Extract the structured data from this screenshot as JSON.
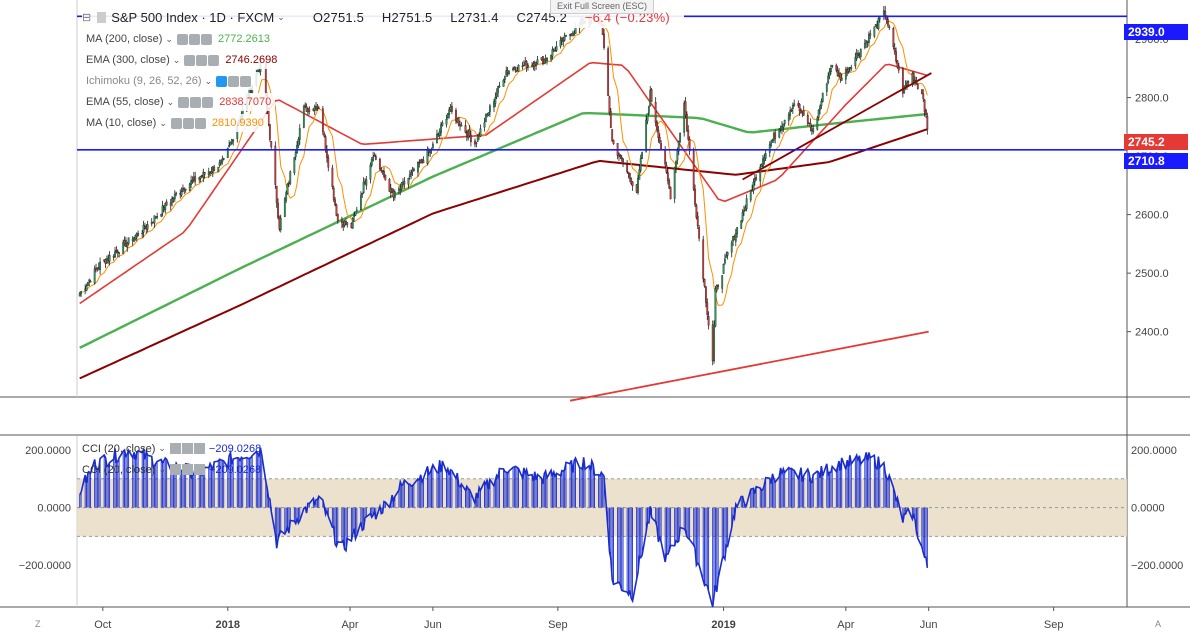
{
  "header": {
    "symbol": "S&P 500 Index · 1D · FXCM",
    "open": "O2751.5",
    "high": "H2751.5",
    "low": "L2731.4",
    "close": "C2745.2",
    "change": "−6.4 (−0.23%)",
    "exit_fullscreen": "Exit Full Screen (ESC)"
  },
  "indicators": [
    {
      "label": "MA (200, close)",
      "value": "2772.2613",
      "color": "#4caf50"
    },
    {
      "label": "EMA (300, close)",
      "value": "2746.2698",
      "color": "#8b0000"
    },
    {
      "label": "Ichimoku (9, 26, 52, 26)",
      "value": "",
      "color": "#2196f3"
    },
    {
      "label": "EMA (55, close)",
      "value": "2838.7070",
      "color": "#e53935"
    },
    {
      "label": "MA (10, close)",
      "value": "2810.9390",
      "color": "#ff8f00"
    }
  ],
  "cci_legend": [
    {
      "label": "CCI (20, close)",
      "value": "−209.0268"
    },
    {
      "label": "CCI (20, close)",
      "value": "−209.0268"
    }
  ],
  "price_tags": {
    "top_line": "2939.0",
    "last": "2745.2",
    "bottom_line": "2710.8"
  },
  "corners": {
    "left": "Z",
    "right": "A"
  },
  "colors": {
    "up": "#26a65b",
    "down": "#e53935",
    "blue_line": "#1a1aff",
    "cci": "#1a2ccc",
    "cci_band": "#e8dcc4"
  },
  "chart_data": {
    "type": "candlestick",
    "title": "S&P 500 Index · 1D · FXCM",
    "price_axis": {
      "ticks": [
        2400,
        2500,
        2600,
        2700,
        2800,
        2900
      ],
      "labels": [
        "2400.0",
        "2500.0",
        "2600.0",
        "2700.0",
        "2800.0",
        "2900.0"
      ],
      "range": [
        2290,
        2960
      ]
    },
    "cci_axis": {
      "ticks": [
        200,
        0,
        -200
      ],
      "labels": [
        "200.0000",
        "0.0000",
        "−200.0000"
      ],
      "range": [
        -345,
        245
      ],
      "band": [
        -100,
        100
      ]
    },
    "time_axis": {
      "labels": [
        "Oct",
        "2018",
        "Apr",
        "Jun",
        "Sep",
        "2019",
        "Apr",
        "Jun",
        "Sep"
      ],
      "label_dates": [
        "2017-10-01",
        "2018-01-01",
        "2018-04-01",
        "2018-06-01",
        "2018-09-01",
        "2019-01-01",
        "2019-04-01",
        "2019-06-01",
        "2019-09-01"
      ],
      "bold_labels": [
        "2018",
        "2019"
      ],
      "range": [
        "2017-09-12",
        "2019-10-25"
      ]
    },
    "horizontal_lines": [
      2939.0,
      2710.8
    ],
    "trendlines": [
      {
        "name": "support",
        "color": "#e53935",
        "points": [
          [
            "2018-09-10",
            2282
          ],
          [
            "2019-06-01",
            2400
          ]
        ]
      },
      {
        "name": "resistance",
        "color": "#8b0000",
        "points": [
          [
            "2019-01-15",
            2660
          ],
          [
            "2019-06-03",
            2842
          ]
        ]
      }
    ],
    "close_anchors": [
      [
        "2017-09-14",
        2465
      ],
      [
        "2017-09-29",
        2515
      ],
      [
        "2017-10-31",
        2575
      ],
      [
        "2017-11-30",
        2648
      ],
      [
        "2017-12-29",
        2690
      ],
      [
        "2018-01-26",
        2865
      ],
      [
        "2018-02-08",
        2580
      ],
      [
        "2018-02-26",
        2780
      ],
      [
        "2018-03-09",
        2786
      ],
      [
        "2018-03-23",
        2590
      ],
      [
        "2018-04-02",
        2580
      ],
      [
        "2018-04-18",
        2705
      ],
      [
        "2018-05-03",
        2630
      ],
      [
        "2018-05-31",
        2712
      ],
      [
        "2018-06-13",
        2780
      ],
      [
        "2018-07-02",
        2722
      ],
      [
        "2018-07-25",
        2846
      ],
      [
        "2018-08-22",
        2865
      ],
      [
        "2018-09-20",
        2932
      ],
      [
        "2018-10-03",
        2930
      ],
      [
        "2018-10-11",
        2725
      ],
      [
        "2018-10-29",
        2640
      ],
      [
        "2018-11-08",
        2807
      ],
      [
        "2018-11-23",
        2633
      ],
      [
        "2018-12-03",
        2790
      ],
      [
        "2018-12-24",
        2351
      ],
      [
        "2018-12-26",
        2467
      ],
      [
        "2019-01-04",
        2532
      ],
      [
        "2019-01-31",
        2704
      ],
      [
        "2019-02-22",
        2792
      ],
      [
        "2019-03-08",
        2743
      ],
      [
        "2019-03-21",
        2854
      ],
      [
        "2019-03-29",
        2834
      ],
      [
        "2019-04-30",
        2946
      ],
      [
        "2019-05-13",
        2812
      ],
      [
        "2019-05-20",
        2840
      ],
      [
        "2019-05-28",
        2802
      ],
      [
        "2019-05-31",
        2745
      ]
    ],
    "cci_anchors": [
      [
        "2017-09-12",
        40
      ],
      [
        "2017-09-25",
        150
      ],
      [
        "2017-10-20",
        200
      ],
      [
        "2017-11-15",
        150
      ],
      [
        "2017-12-10",
        120
      ],
      [
        "2018-01-10",
        180
      ],
      [
        "2018-01-26",
        200
      ],
      [
        "2018-02-06",
        -120
      ],
      [
        "2018-02-26",
        -10
      ],
      [
        "2018-03-10",
        30
      ],
      [
        "2018-03-25",
        -150
      ],
      [
        "2018-04-10",
        -60
      ],
      [
        "2018-04-25",
        0
      ],
      [
        "2018-05-10",
        80
      ],
      [
        "2018-06-10",
        150
      ],
      [
        "2018-07-01",
        30
      ],
      [
        "2018-07-25",
        140
      ],
      [
        "2018-08-20",
        100
      ],
      [
        "2018-09-20",
        160
      ],
      [
        "2018-10-05",
        110
      ],
      [
        "2018-10-11",
        -250
      ],
      [
        "2018-10-26",
        -300
      ],
      [
        "2018-11-08",
        -20
      ],
      [
        "2018-11-20",
        -180
      ],
      [
        "2018-12-03",
        -60
      ],
      [
        "2018-12-24",
        -330
      ],
      [
        "2019-01-10",
        0
      ],
      [
        "2019-02-10",
        120
      ],
      [
        "2019-03-10",
        110
      ],
      [
        "2019-03-25",
        150
      ],
      [
        "2019-04-20",
        170
      ],
      [
        "2019-04-30",
        140
      ],
      [
        "2019-05-13",
        -40
      ],
      [
        "2019-05-20",
        -20
      ],
      [
        "2019-05-31",
        -209
      ]
    ],
    "ma200_anchors": [
      [
        "2017-09-12",
        2370
      ],
      [
        "2018-01-10",
        2508
      ],
      [
        "2018-06-01",
        2665
      ],
      [
        "2018-09-20",
        2774
      ],
      [
        "2018-12-15",
        2765
      ],
      [
        "2019-01-20",
        2740
      ],
      [
        "2019-03-20",
        2755
      ],
      [
        "2019-05-31",
        2772
      ]
    ],
    "ema300_anchors": [
      [
        "2017-09-12",
        2318
      ],
      [
        "2018-01-10",
        2445
      ],
      [
        "2018-06-01",
        2602
      ],
      [
        "2018-10-01",
        2692
      ],
      [
        "2019-01-10",
        2668
      ],
      [
        "2019-03-20",
        2690
      ],
      [
        "2019-05-31",
        2746
      ]
    ],
    "ema55_anchors": [
      [
        "2017-09-12",
        2445
      ],
      [
        "2017-12-01",
        2572
      ],
      [
        "2018-02-06",
        2798
      ],
      [
        "2018-04-10",
        2720
      ],
      [
        "2018-07-10",
        2736
      ],
      [
        "2018-09-25",
        2860
      ],
      [
        "2018-10-20",
        2855
      ],
      [
        "2018-12-30",
        2620
      ],
      [
        "2019-02-10",
        2660
      ],
      [
        "2019-04-01",
        2788
      ],
      [
        "2019-05-01",
        2858
      ],
      [
        "2019-05-31",
        2838
      ]
    ],
    "ma10_offset_scale": 0.25
  }
}
